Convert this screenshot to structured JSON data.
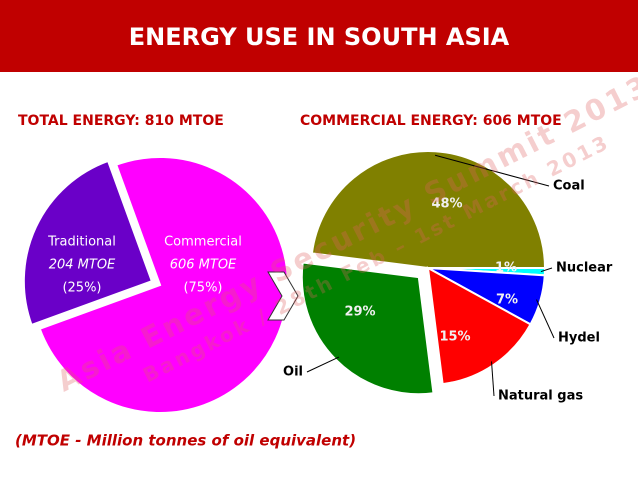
{
  "header": {
    "title": "ENERGY USE IN SOUTH ASIA"
  },
  "chart_data": [
    {
      "type": "pie",
      "title": "TOTAL ENERGY: 810 MTOE",
      "categories": [
        "Traditional",
        "Commercial"
      ],
      "values": [
        25,
        75
      ],
      "value_labels": [
        "(25%)",
        "(75%)"
      ],
      "sublabels": [
        "204 MTOE",
        "606 MTOE"
      ],
      "colors": [
        "#6a00c8",
        "#ff00ff"
      ],
      "exploded": [
        true,
        false
      ]
    },
    {
      "type": "pie",
      "title": "COMMERCIAL ENERGY: 606 MTOE",
      "categories": [
        "Coal",
        "Nuclear",
        "Hydel",
        "Natural gas",
        "Oil"
      ],
      "values": [
        48,
        1,
        7,
        15,
        29
      ],
      "value_labels": [
        "48%",
        "1%",
        "7%",
        "15%",
        "29%"
      ],
      "colors": [
        "#808000",
        "#00ffff",
        "#0000ff",
        "#ff0000",
        "#008000"
      ],
      "exploded": [
        false,
        false,
        false,
        false,
        true
      ]
    }
  ],
  "footnote": "(MTOE - Million tonnes of oil equivalent)",
  "watermark": {
    "line1": "Asia Energy Security Summit 2013",
    "line2": "Bangkok / 28th Feb – 1st March 2013"
  }
}
